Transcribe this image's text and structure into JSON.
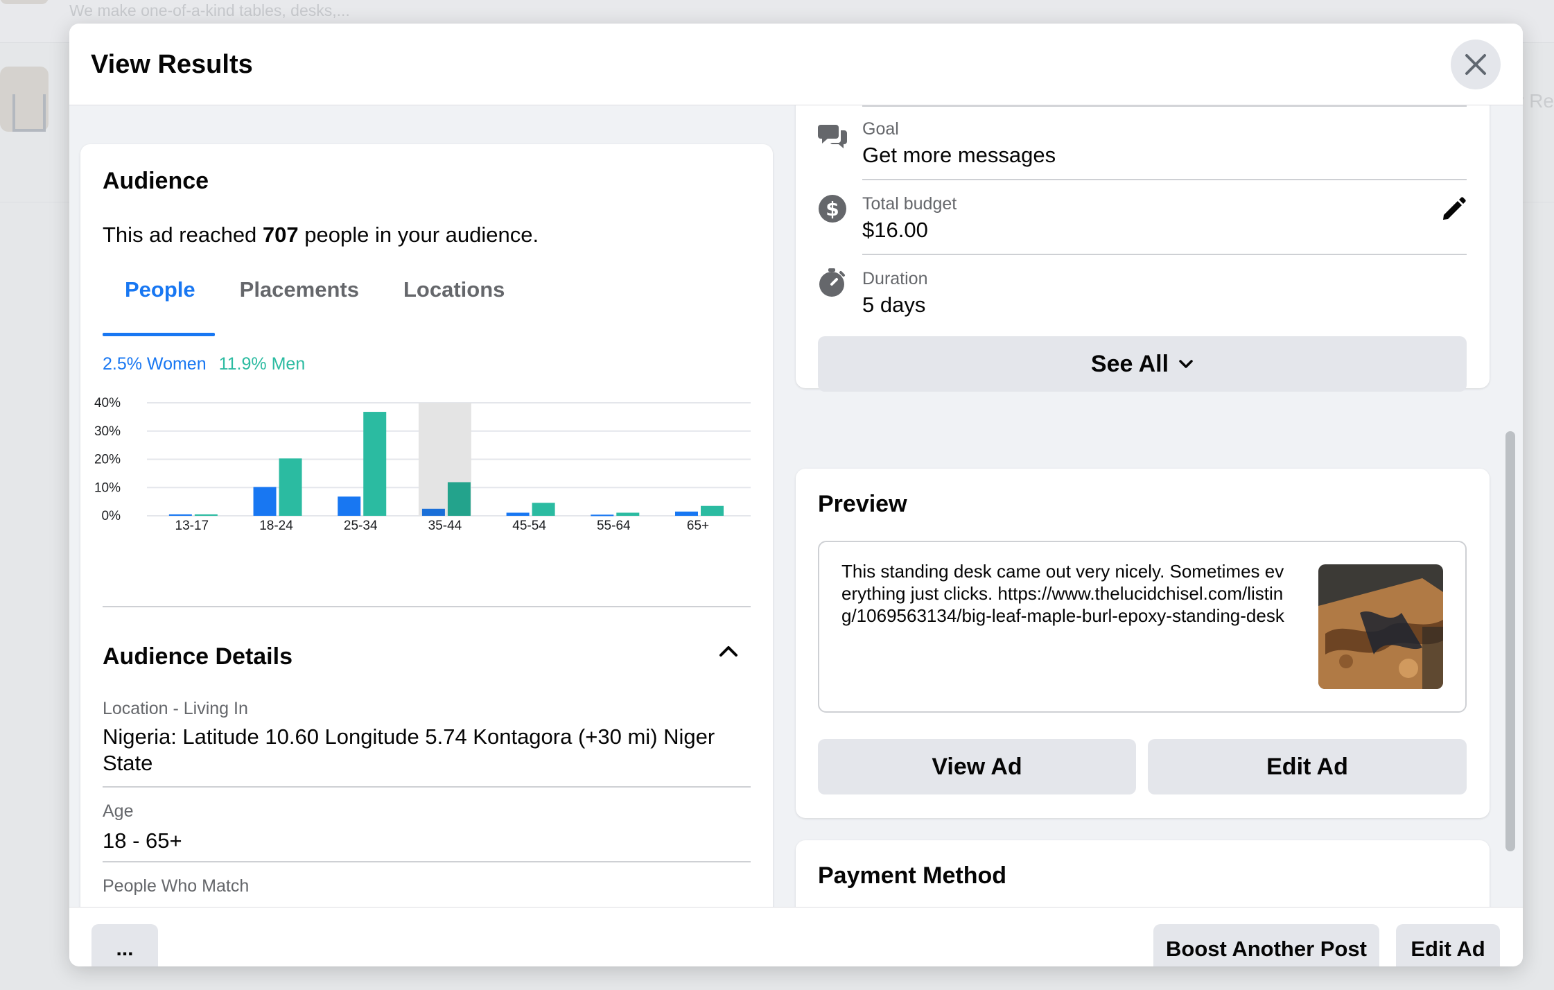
{
  "background": {
    "row_text": "We make one-of-a-kind tables, desks,...",
    "right_fragment": "v Re"
  },
  "modal": {
    "title": "View Results",
    "close_icon": "close-icon"
  },
  "audience": {
    "heading": "Audience",
    "reach_prefix": "This ad reached ",
    "reach_count": "707",
    "reach_suffix": " people in your audience.",
    "tabs": [
      "People",
      "Placements",
      "Locations"
    ],
    "active_tab": "People",
    "legend_women": "2.5% Women",
    "legend_men": "11.9% Men"
  },
  "chart_data": {
    "type": "bar",
    "categories": [
      "13-17",
      "18-24",
      "25-34",
      "35-44",
      "45-54",
      "55-64",
      "65+"
    ],
    "series": [
      {
        "name": "Women",
        "values": [
          0.5,
          10.2,
          6.8,
          2.5,
          1.1,
          0.4,
          1.5
        ],
        "color": "#1877f2"
      },
      {
        "name": "Men",
        "values": [
          0.5,
          20.3,
          36.8,
          11.9,
          4.6,
          1.1,
          3.5
        ],
        "color": "#2bbba1"
      }
    ],
    "highlighted_category": "35-44",
    "yticks": [
      "0%",
      "10%",
      "20%",
      "30%",
      "40%"
    ],
    "ylim": [
      0,
      40
    ],
    "grid": true
  },
  "audience_details": {
    "heading": "Audience Details",
    "location_label": "Location - Living In",
    "location_value": "Nigeria: Latitude 10.60 Longitude 5.74 Kontagora (+30 mi) Niger State",
    "age_label": "Age",
    "age_value": "18 - 65+",
    "match_label": "People Who Match"
  },
  "summary": {
    "goal_label": "Goal",
    "goal_value": "Get more messages",
    "budget_label": "Total budget",
    "budget_value": "$16.00",
    "duration_label": "Duration",
    "duration_value": "5 days",
    "see_all": "See All"
  },
  "preview": {
    "heading": "Preview",
    "text": "This standing desk came out very nicely. Sometimes everything just clicks. https://www.thelucidchisel.com/listing/1069563134/big-leaf-maple-burl-epoxy-standing-desk",
    "view_ad": "View Ad",
    "edit_ad": "Edit Ad"
  },
  "payment": {
    "heading": "Payment Method"
  },
  "footer": {
    "more": "...",
    "boost_another": "Boost Another Post",
    "edit_ad": "Edit Ad"
  },
  "colors": {
    "accent_blue": "#1877f2",
    "accent_teal": "#2bbba1",
    "button_gray": "#e4e6eb"
  }
}
